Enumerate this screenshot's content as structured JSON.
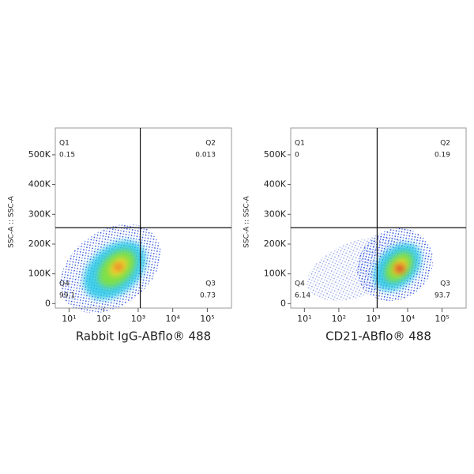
{
  "chart_data": [
    {
      "type": "scatter",
      "x_label": "Rabbit IgG-ABflo® 488",
      "y_label": "SSC-A :: SSC-A",
      "xscale": "log",
      "xlim": [
        4,
        500000
      ],
      "xticks": [
        {
          "value": 10,
          "label": "10¹"
        },
        {
          "value": 100,
          "label": "10²"
        },
        {
          "value": 1000,
          "label": "10³"
        },
        {
          "value": 10000,
          "label": "10⁴"
        },
        {
          "value": 100000,
          "label": "10⁵"
        }
      ],
      "ylim": [
        -15000,
        590000
      ],
      "yticks": [
        0,
        {
          "value": 100000,
          "label": "100K"
        },
        {
          "value": 200000,
          "label": "200K"
        },
        {
          "value": 300000,
          "label": "300K"
        },
        {
          "value": 400000,
          "label": "400K"
        },
        {
          "value": 500000,
          "label": "500K"
        }
      ],
      "gate": {
        "x": 1150,
        "y": 255000
      },
      "quadrants": [
        {
          "name": "Q1",
          "value": 0.15
        },
        {
          "name": "Q2",
          "value": 0.013
        },
        {
          "name": "Q3",
          "value": 0.73
        },
        {
          "name": "Q4",
          "value": 99.1
        }
      ]
    },
    {
      "type": "scatter",
      "x_label": "CD21-ABflo® 488",
      "y_label": "SSC-A :: SSC-A",
      "xscale": "log",
      "xlim": [
        4,
        500000
      ],
      "xticks": [
        {
          "value": 10,
          "label": "10¹"
        },
        {
          "value": 100,
          "label": "10²"
        },
        {
          "value": 1000,
          "label": "10³"
        },
        {
          "value": 10000,
          "label": "10⁴"
        },
        {
          "value": 100000,
          "label": "10⁵"
        }
      ],
      "ylim": [
        -15000,
        590000
      ],
      "yticks": [
        0,
        {
          "value": 100000,
          "label": "100K"
        },
        {
          "value": 200000,
          "label": "200K"
        },
        {
          "value": 300000,
          "label": "300K"
        },
        {
          "value": 400000,
          "label": "400K"
        },
        {
          "value": 500000,
          "label": "500K"
        }
      ],
      "gate": {
        "x": 1300,
        "y": 255000
      },
      "quadrants": [
        {
          "name": "Q1",
          "value": 0
        },
        {
          "name": "Q2",
          "value": 0.19
        },
        {
          "name": "Q3",
          "value": 93.7
        },
        {
          "name": "Q4",
          "value": 6.14
        }
      ]
    }
  ]
}
